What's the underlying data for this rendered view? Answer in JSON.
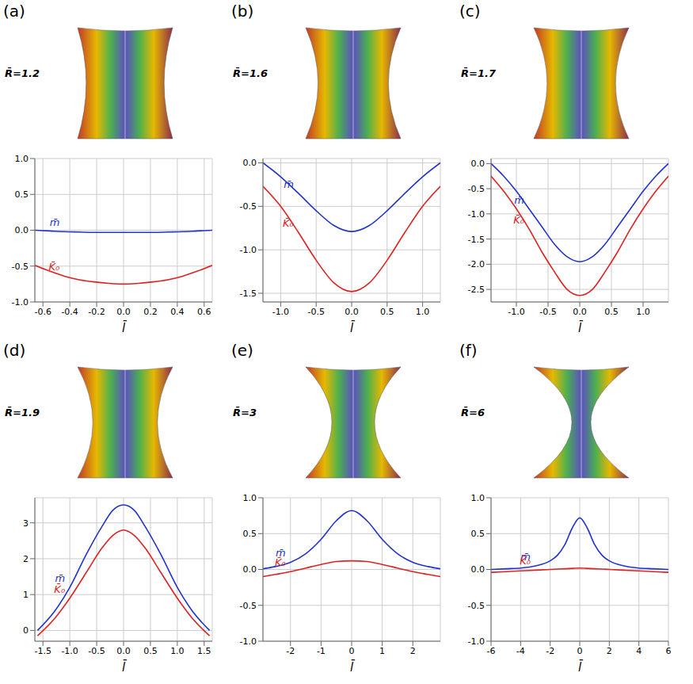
{
  "chart_data": [
    {
      "type": "line",
      "panel": "(a)",
      "annotation": "R̄=1.2",
      "xlabel": "l̄",
      "x": [
        -0.66,
        -0.55,
        -0.44,
        -0.33,
        -0.22,
        -0.11,
        0,
        0.11,
        0.22,
        0.33,
        0.44,
        0.55,
        0.66
      ],
      "series": [
        {
          "name": "m̄",
          "color": "#2233cc",
          "values": [
            0,
            -0.01,
            -0.02,
            -0.025,
            -0.03,
            -0.03,
            -0.03,
            -0.03,
            -0.03,
            -0.025,
            -0.02,
            -0.01,
            0
          ]
        },
        {
          "name": "K̄₀",
          "color": "#dd2222",
          "values": [
            -0.49,
            -0.57,
            -0.64,
            -0.69,
            -0.72,
            -0.74,
            -0.75,
            -0.74,
            -0.72,
            -0.69,
            -0.64,
            -0.57,
            -0.49
          ]
        }
      ],
      "xlim": [
        -0.66,
        0.66
      ],
      "xticks": [
        -0.6,
        -0.4,
        -0.2,
        {
          "value": 0,
          "label": "0.0"
        },
        0.2,
        0.4,
        0.6
      ],
      "ylim": [
        -1,
        1
      ],
      "yticks": [
        {
          "value": -1,
          "label": "-1.0"
        },
        -0.5,
        {
          "value": 0,
          "label": "0.0"
        },
        0.5,
        {
          "value": 1,
          "label": "1.0"
        }
      ],
      "grid": true
    },
    {
      "type": "line",
      "panel": "(b)",
      "annotation": "R̄=1.6",
      "xlabel": "l̄",
      "x": [
        -1.25,
        -1,
        -0.75,
        -0.5,
        -0.25,
        0,
        0.25,
        0.5,
        0.75,
        1,
        1.25
      ],
      "series": [
        {
          "name": "m̄",
          "color": "#2233cc",
          "values": [
            0,
            -0.16,
            -0.35,
            -0.55,
            -0.72,
            -0.79,
            -0.72,
            -0.55,
            -0.35,
            -0.16,
            0
          ]
        },
        {
          "name": "K̄₀",
          "color": "#dd2222",
          "values": [
            -0.27,
            -0.5,
            -0.8,
            -1.12,
            -1.38,
            -1.48,
            -1.38,
            -1.12,
            -0.8,
            -0.5,
            -0.27
          ]
        }
      ],
      "xlim": [
        -1.25,
        1.25
      ],
      "xticks": [
        {
          "value": -1,
          "label": "-1.0"
        },
        -0.5,
        {
          "value": 0,
          "label": "0.0"
        },
        0.5,
        {
          "value": 1,
          "label": "1.0"
        }
      ],
      "ylim": [
        -1.6,
        0.05
      ],
      "yticks": [
        -1.5,
        {
          "value": -1,
          "label": "-1.0"
        },
        -0.5,
        {
          "value": 0,
          "label": "0.0"
        }
      ],
      "grid": true
    },
    {
      "type": "line",
      "panel": "(c)",
      "annotation": "R̄=1.7",
      "xlabel": "l̄",
      "x": [
        -1.4,
        -1.2,
        -1,
        -0.8,
        -0.6,
        -0.4,
        -0.2,
        0,
        0.2,
        0.4,
        0.6,
        0.8,
        1,
        1.2,
        1.4
      ],
      "series": [
        {
          "name": "m̄",
          "color": "#2233cc",
          "values": [
            0,
            -0.25,
            -0.55,
            -0.9,
            -1.25,
            -1.6,
            -1.85,
            -1.95,
            -1.85,
            -1.6,
            -1.25,
            -0.9,
            -0.55,
            -0.25,
            0
          ]
        },
        {
          "name": "K̄₀",
          "color": "#dd2222",
          "values": [
            -0.25,
            -0.55,
            -0.9,
            -1.3,
            -1.75,
            -2.15,
            -2.5,
            -2.62,
            -2.5,
            -2.15,
            -1.75,
            -1.3,
            -0.9,
            -0.55,
            -0.25
          ]
        }
      ],
      "xlim": [
        -1.4,
        1.4
      ],
      "xticks": [
        {
          "value": -1,
          "label": "-1.0"
        },
        -0.5,
        {
          "value": 0,
          "label": "0.0"
        },
        0.5,
        {
          "value": 1,
          "label": "1.0"
        }
      ],
      "ylim": [
        -2.75,
        0.1
      ],
      "yticks": [
        -2.5,
        {
          "value": -2,
          "label": "-2.0"
        },
        -1.5,
        {
          "value": -1,
          "label": "-1.0"
        },
        -0.5,
        {
          "value": 0,
          "label": "0.0"
        }
      ],
      "grid": true
    },
    {
      "type": "line",
      "panel": "(d)",
      "annotation": "R̄=1.9",
      "xlabel": "l̄",
      "x": [
        -1.6,
        -1.3,
        -1,
        -0.7,
        -0.4,
        -0.2,
        0,
        0.2,
        0.4,
        0.7,
        1,
        1.3,
        1.6
      ],
      "series": [
        {
          "name": "m̄",
          "color": "#2233cc",
          "values": [
            0,
            0.5,
            1.2,
            2.1,
            2.9,
            3.35,
            3.5,
            3.35,
            2.9,
            2.1,
            1.2,
            0.5,
            0
          ]
        },
        {
          "name": "K̄₀",
          "color": "#dd2222",
          "values": [
            -0.15,
            0.3,
            0.9,
            1.6,
            2.3,
            2.65,
            2.8,
            2.65,
            2.3,
            1.6,
            0.9,
            0.3,
            -0.15
          ]
        }
      ],
      "xlim": [
        -1.65,
        1.65
      ],
      "xticks": [
        -1.5,
        {
          "value": -1,
          "label": "-1.0"
        },
        -0.5,
        {
          "value": 0,
          "label": "0.0"
        },
        0.5,
        {
          "value": 1,
          "label": "1.0"
        },
        1.5
      ],
      "ylim": [
        -0.3,
        3.7
      ],
      "yticks": [
        0,
        1,
        2,
        3
      ],
      "grid": true
    },
    {
      "type": "line",
      "panel": "(e)",
      "annotation": "R̄=3",
      "xlabel": "l̄",
      "x": [
        -2.9,
        -2.5,
        -2,
        -1.5,
        -1,
        -0.5,
        0,
        0.5,
        1,
        1.5,
        2,
        2.5,
        2.9
      ],
      "series": [
        {
          "name": "m̄",
          "color": "#2233cc",
          "values": [
            0.01,
            0.04,
            0.1,
            0.22,
            0.42,
            0.68,
            0.82,
            0.68,
            0.42,
            0.22,
            0.1,
            0.04,
            0.01
          ]
        },
        {
          "name": "K̄₀",
          "color": "#dd2222",
          "values": [
            -0.1,
            -0.07,
            -0.03,
            0.02,
            0.07,
            0.11,
            0.12,
            0.11,
            0.07,
            0.02,
            -0.03,
            -0.07,
            -0.1
          ]
        }
      ],
      "xlim": [
        -2.9,
        2.9
      ],
      "xticks": [
        -2,
        -1,
        0,
        1,
        2
      ],
      "ylim": [
        -1,
        1
      ],
      "yticks": [
        {
          "value": -1,
          "label": "-1.0"
        },
        -0.5,
        {
          "value": 0,
          "label": "0.0"
        },
        0.5,
        {
          "value": 1,
          "label": "1.0"
        }
      ],
      "grid": true
    },
    {
      "type": "line",
      "panel": "(f)",
      "annotation": "R̄=6",
      "xlabel": "l̄",
      "x": [
        -6,
        -5,
        -4,
        -3,
        -2,
        -1.5,
        -1,
        -0.5,
        0,
        0.5,
        1,
        1.5,
        2,
        3,
        4,
        5,
        6
      ],
      "series": [
        {
          "name": "m̄",
          "color": "#2233cc",
          "values": [
            0,
            0.01,
            0.02,
            0.05,
            0.12,
            0.2,
            0.35,
            0.58,
            0.72,
            0.58,
            0.35,
            0.2,
            0.12,
            0.05,
            0.02,
            0.01,
            0
          ]
        },
        {
          "name": "K̄₀",
          "color": "#dd2222",
          "values": [
            -0.04,
            -0.03,
            -0.02,
            -0.01,
            0,
            0.005,
            0.01,
            0.015,
            0.02,
            0.015,
            0.01,
            0.005,
            0,
            -0.01,
            -0.02,
            -0.03,
            -0.04
          ]
        }
      ],
      "xlim": [
        -6,
        6
      ],
      "xticks": [
        -6,
        -4,
        -2,
        0,
        2,
        4,
        6
      ],
      "ylim": [
        -1,
        1
      ],
      "yticks": [
        {
          "value": -1,
          "label": "-1.0"
        },
        -0.5,
        {
          "value": 0,
          "label": "0.0"
        },
        0.5,
        {
          "value": 1,
          "label": "1.0"
        }
      ],
      "grid": true
    }
  ]
}
